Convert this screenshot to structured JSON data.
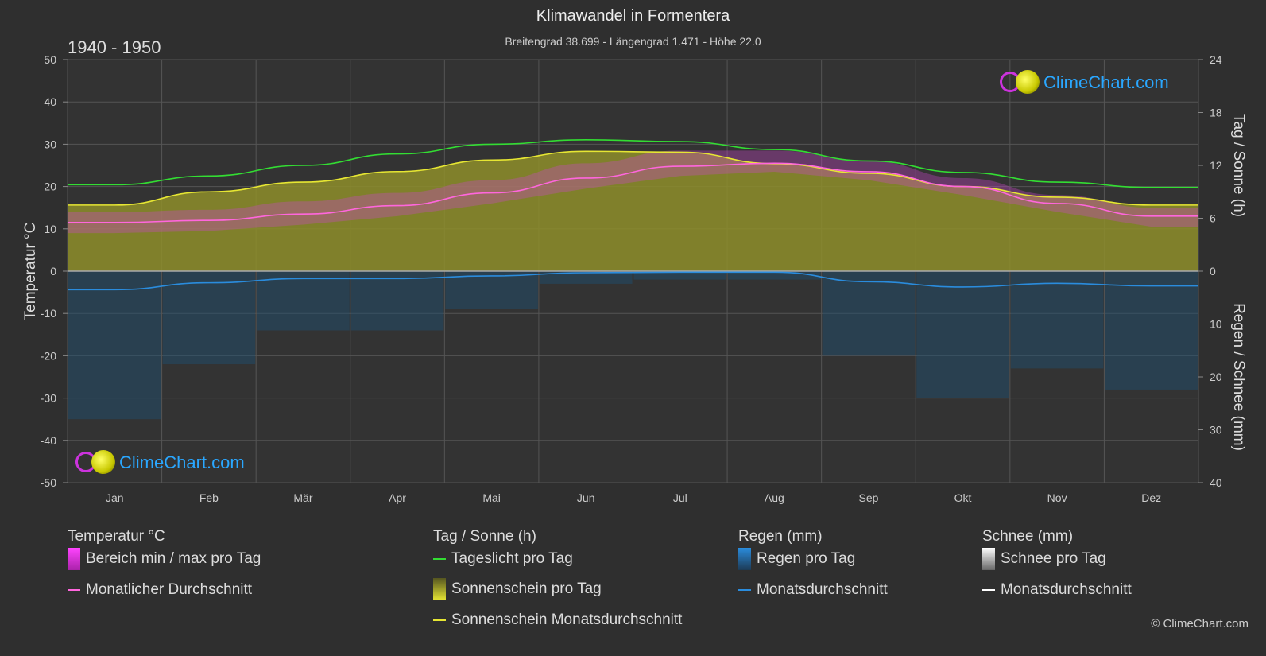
{
  "title": "Klimawandel in Formentera",
  "subtitle": "Breitengrad 38.699 - Längengrad 1.471 - Höhe 22.0",
  "period": "1940 - 1950",
  "brand": "ClimeChart.com",
  "copyright": "© ClimeChart.com",
  "colors": {
    "background": "#2f2f2f",
    "grid": "#555555",
    "daylight": "#33dd33",
    "sunshine_fill": "#8e8e2a",
    "sunshine_avg": "#e6e633",
    "temp_range": "#cc44cc",
    "temp_avg": "#ff66dd",
    "rain_bars": "#1d4f73",
    "rain_avg": "#2a8cdd",
    "snow_avg": "#ffffff"
  },
  "axes": {
    "left_label": "Temperatur °C",
    "right_top_label": "Tag / Sonne (h)",
    "right_bottom_label": "Regen / Schnee (mm)",
    "left_ticks": [
      "50",
      "40",
      "30",
      "20",
      "10",
      "0",
      "-10",
      "-20",
      "-30",
      "-40",
      "-50"
    ],
    "right_top_ticks": [
      "24",
      "18",
      "12",
      "6",
      "0"
    ],
    "right_bottom_ticks": [
      "10",
      "20",
      "30",
      "40"
    ]
  },
  "chart_data": {
    "type": "area",
    "categories": [
      "Jan",
      "Feb",
      "Mär",
      "Apr",
      "Mai",
      "Jun",
      "Jul",
      "Aug",
      "Sep",
      "Okt",
      "Nov",
      "Dez"
    ],
    "temperature_ylim": [
      -50,
      50
    ],
    "hours_ylim": [
      0,
      24
    ],
    "precip_ylim": [
      0,
      40
    ],
    "series": [
      {
        "name": "Tageslicht pro Tag",
        "axis": "hours",
        "values": [
          9.8,
          10.8,
          12.0,
          13.3,
          14.4,
          14.9,
          14.7,
          13.8,
          12.5,
          11.2,
          10.1,
          9.5
        ]
      },
      {
        "name": "Sonnenschein Monatsdurchschnitt",
        "axis": "hours",
        "values": [
          7.5,
          9.0,
          10.1,
          11.3,
          12.6,
          13.6,
          13.5,
          12.2,
          11.1,
          9.6,
          8.4,
          7.5
        ]
      },
      {
        "name": "Monatlicher Durchschnitt",
        "axis": "temperature",
        "values": [
          11.5,
          12.0,
          13.5,
          15.5,
          18.5,
          22.0,
          24.8,
          25.5,
          23.5,
          20.0,
          16.0,
          13.0
        ]
      },
      {
        "name": "Bereich min / max pro Tag",
        "axis": "temperature",
        "min": [
          9.0,
          9.5,
          11.0,
          13.0,
          16.0,
          19.5,
          22.5,
          23.5,
          21.5,
          18.0,
          14.0,
          10.5
        ],
        "max": [
          14.0,
          14.5,
          16.5,
          18.5,
          21.5,
          25.5,
          28.5,
          28.5,
          26.0,
          22.0,
          18.0,
          15.0
        ]
      },
      {
        "name": "Regen Monatsdurchschnitt",
        "axis": "precip",
        "values": [
          3.5,
          2.2,
          1.4,
          1.4,
          0.9,
          0.3,
          0.2,
          0.2,
          2.0,
          3.0,
          2.3,
          2.8
        ]
      },
      {
        "name": "Schnee Monatsdurchschnitt",
        "axis": "precip",
        "values": [
          0,
          0,
          0,
          0,
          0,
          0,
          0,
          0,
          0,
          0,
          0,
          0
        ]
      }
    ]
  },
  "legend": {
    "temperature": {
      "header": "Temperatur °C",
      "range": "Bereich min / max pro Tag",
      "avg": "Monatlicher Durchschnitt"
    },
    "sun": {
      "header": "Tag / Sonne (h)",
      "daylight": "Tageslicht pro Tag",
      "sunshine": "Sonnenschein pro Tag",
      "sunshine_avg": "Sonnenschein Monatsdurchschnitt"
    },
    "rain": {
      "header": "Regen (mm)",
      "per_day": "Regen pro Tag",
      "avg": "Monatsdurchschnitt"
    },
    "snow": {
      "header": "Schnee (mm)",
      "per_day": "Schnee pro Tag",
      "avg": "Monatsdurchschnitt"
    }
  }
}
